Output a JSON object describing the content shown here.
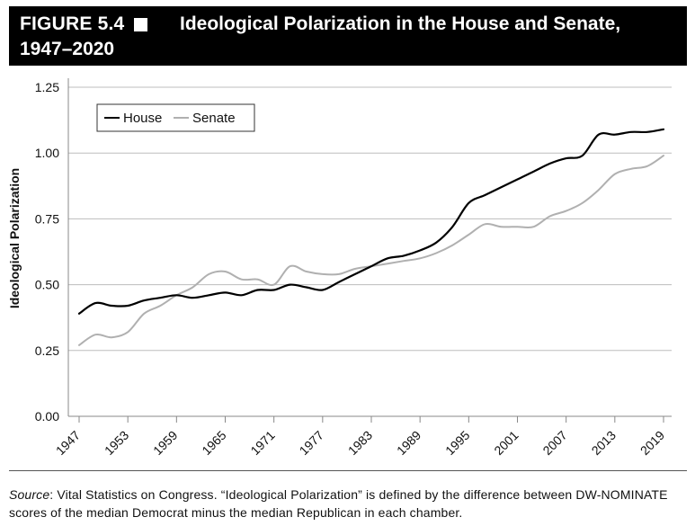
{
  "figure": {
    "label": "FIGURE 5.4",
    "title_line1": "Ideological Polarization in the House and Senate,",
    "title_line2": "1947–2020"
  },
  "source": {
    "lead": "Source",
    "text": ": Vital Statistics on Congress. “Ideological Polarization” is defined by the difference between DW-NOMINATE scores of the median Democrat minus the median Republican in each chamber."
  },
  "chart_data": {
    "type": "line",
    "ylabel": "Ideological Polarization",
    "xlabel": "",
    "xlim": [
      1947,
      2019
    ],
    "ylim": [
      0,
      1.25
    ],
    "x_ticks": [
      "1947",
      "1953",
      "1959",
      "1965",
      "1971",
      "1977",
      "1983",
      "1989",
      "1995",
      "2001",
      "2007",
      "2013",
      "2019"
    ],
    "y_ticks": [
      "0.00",
      "0.25",
      "0.50",
      "0.75",
      "1.00",
      "1.25"
    ],
    "grid": "horizontal",
    "legend_position": "top-left",
    "colors": {
      "House": "#000000",
      "Senate": "#b0b0b0"
    },
    "series": [
      {
        "name": "House",
        "x": [
          1947,
          1949,
          1951,
          1953,
          1955,
          1957,
          1959,
          1961,
          1963,
          1965,
          1967,
          1969,
          1971,
          1973,
          1975,
          1977,
          1979,
          1981,
          1983,
          1985,
          1987,
          1989,
          1991,
          1993,
          1995,
          1997,
          1999,
          2001,
          2003,
          2005,
          2007,
          2009,
          2011,
          2013,
          2015,
          2017,
          2019
        ],
        "y": [
          0.39,
          0.43,
          0.42,
          0.42,
          0.44,
          0.45,
          0.46,
          0.45,
          0.46,
          0.47,
          0.46,
          0.48,
          0.48,
          0.5,
          0.49,
          0.48,
          0.51,
          0.54,
          0.57,
          0.6,
          0.61,
          0.63,
          0.66,
          0.72,
          0.81,
          0.84,
          0.87,
          0.9,
          0.93,
          0.96,
          0.98,
          0.99,
          1.07,
          1.07,
          1.08,
          1.08,
          1.09
        ]
      },
      {
        "name": "Senate",
        "x": [
          1947,
          1949,
          1951,
          1953,
          1955,
          1957,
          1959,
          1961,
          1963,
          1965,
          1967,
          1969,
          1971,
          1973,
          1975,
          1977,
          1979,
          1981,
          1983,
          1985,
          1987,
          1989,
          1991,
          1993,
          1995,
          1997,
          1999,
          2001,
          2003,
          2005,
          2007,
          2009,
          2011,
          2013,
          2015,
          2017,
          2019
        ],
        "y": [
          0.27,
          0.31,
          0.3,
          0.32,
          0.39,
          0.42,
          0.46,
          0.49,
          0.54,
          0.55,
          0.52,
          0.52,
          0.5,
          0.57,
          0.55,
          0.54,
          0.54,
          0.56,
          0.57,
          0.58,
          0.59,
          0.6,
          0.62,
          0.65,
          0.69,
          0.73,
          0.72,
          0.72,
          0.72,
          0.76,
          0.78,
          0.81,
          0.86,
          0.92,
          0.94,
          0.95,
          0.99
        ]
      }
    ]
  }
}
